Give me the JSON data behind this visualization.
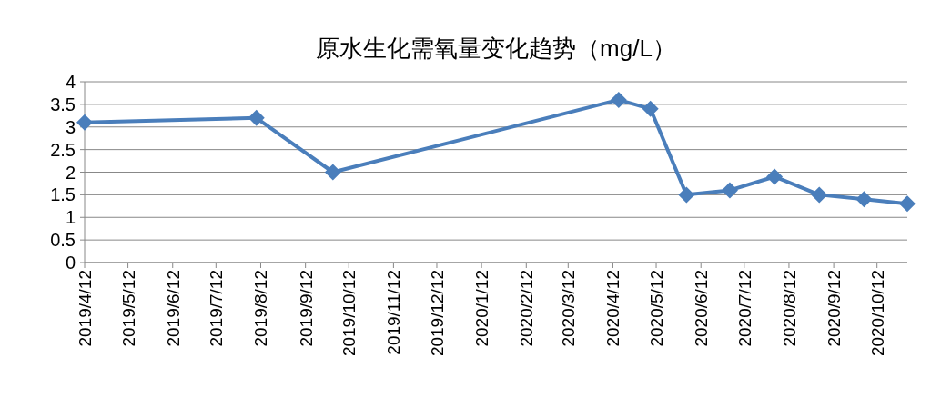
{
  "chart_data": {
    "type": "line",
    "title": "原水生化需氧量变化趋势（mg/L）",
    "x": [
      "2019-04-12",
      "2019-08-09",
      "2019-10-01",
      "2020-04-16",
      "2020-05-08",
      "2020-06-02",
      "2020-07-02",
      "2020-08-02",
      "2020-09-02",
      "2020-10-03",
      "2020-11-02"
    ],
    "series": [
      {
        "color": "#4a7ebb",
        "values": [
          3.1,
          3.2,
          2.0,
          3.6,
          3.4,
          1.5,
          1.6,
          1.9,
          1.5,
          1.4,
          1.3
        ]
      }
    ],
    "xlim": [
      "2019-04-12",
      "2020-11-02"
    ],
    "xticks": [
      {
        "value": "2019-04-12",
        "label": "2019/4/12"
      },
      {
        "value": "2019-05-12",
        "label": "2019/5/12"
      },
      {
        "value": "2019-06-12",
        "label": "2019/6/12"
      },
      {
        "value": "2019-07-12",
        "label": "2019/7/12"
      },
      {
        "value": "2019-08-12",
        "label": "2019/8/12"
      },
      {
        "value": "2019-09-12",
        "label": "2019/9/12"
      },
      {
        "value": "2019-10-12",
        "label": "2019/10/12"
      },
      {
        "value": "2019-11-12",
        "label": "2019/11/12"
      },
      {
        "value": "2019-12-12",
        "label": "2019/12/12"
      },
      {
        "value": "2020-01-12",
        "label": "2020/1/12"
      },
      {
        "value": "2020-02-12",
        "label": "2020/2/12"
      },
      {
        "value": "2020-03-12",
        "label": "2020/3/12"
      },
      {
        "value": "2020-04-12",
        "label": "2020/4/12"
      },
      {
        "value": "2020-05-12",
        "label": "2020/5/12"
      },
      {
        "value": "2020-06-12",
        "label": "2020/6/12"
      },
      {
        "value": "2020-07-12",
        "label": "2020/7/12"
      },
      {
        "value": "2020-08-12",
        "label": "2020/8/12"
      },
      {
        "value": "2020-09-12",
        "label": "2020/9/12"
      },
      {
        "value": "2020-10-12",
        "label": "2020/10/12"
      }
    ],
    "ylim": [
      0,
      4
    ],
    "yticks": [
      0,
      {
        "value": 0.5,
        "label": "0.5"
      },
      1,
      {
        "value": 1.5,
        "label": "1.5"
      },
      2,
      {
        "value": 2.5,
        "label": "2.5"
      },
      3,
      {
        "value": 3.5,
        "label": "3.5"
      },
      4
    ],
    "grid": "y",
    "marker": "diamond",
    "line_style": "solid"
  }
}
